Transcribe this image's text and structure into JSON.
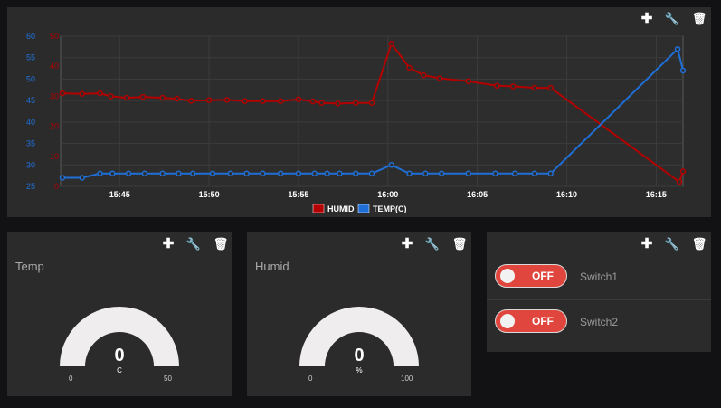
{
  "chart_pane": {
    "tools": {
      "add_icon": "plus-icon",
      "settings_icon": "wrench-icon",
      "delete_icon": "trash-icon"
    }
  },
  "chart_data": {
    "type": "line",
    "x_ticks": [
      "15:45",
      "15:50",
      "15:55",
      "16:00",
      "16:05",
      "16:10",
      "16:15"
    ],
    "x_tick_minutes": [
      45,
      50,
      55,
      60,
      65,
      70,
      75
    ],
    "xlim_minutes": [
      41.7,
      76.5
    ],
    "y_left": {
      "ticks": [
        "60",
        "55",
        "50",
        "45",
        "40",
        "35",
        "30",
        "25"
      ],
      "range": [
        25,
        60
      ],
      "color": "#1f6fd6"
    },
    "y_right": {
      "ticks": [
        "50",
        "40",
        "30",
        "20",
        "10",
        "0"
      ],
      "range": [
        0,
        50
      ],
      "color": "#b40000"
    },
    "grid": true,
    "legend_position": "bottom",
    "series": [
      {
        "name": "HUMID",
        "axis": "right",
        "color": "#b40000",
        "x": [
          41.8,
          42.9,
          43.9,
          44.5,
          45.4,
          46.3,
          47.4,
          48.2,
          49.0,
          50.0,
          51.0,
          52.0,
          53.0,
          54.0,
          55.0,
          55.8,
          56.3,
          57.2,
          58.2,
          59.1,
          60.2,
          61.2,
          62.0,
          62.9,
          64.5,
          66.1,
          67.0,
          68.2,
          69.1,
          76.3,
          76.5
        ],
        "y": [
          31.0,
          30.8,
          31.0,
          30.0,
          29.5,
          29.8,
          29.5,
          29.2,
          28.5,
          28.7,
          28.8,
          28.4,
          28.4,
          28.4,
          29.0,
          28.3,
          27.8,
          27.6,
          27.8,
          27.8,
          47.5,
          39.5,
          37.0,
          36.0,
          35.0,
          33.5,
          33.3,
          32.8,
          32.8,
          1.5,
          5.0
        ],
        "markers": [
          41.8,
          42.9,
          43.9,
          44.5,
          45.4,
          46.3,
          47.4,
          48.2,
          49.0,
          50.0,
          51.0,
          52.0,
          53.0,
          54.0,
          55.0,
          55.8,
          56.3,
          57.2,
          58.2,
          59.1,
          60.2,
          61.2,
          62.0,
          62.9,
          64.5,
          66.1,
          67.0,
          68.2,
          69.1,
          76.3,
          76.5
        ]
      },
      {
        "name": "TEMP(C)",
        "axis": "left",
        "color": "#1f6fd6",
        "x": [
          41.8,
          42.9,
          43.9,
          44.6,
          45.5,
          46.4,
          47.4,
          48.3,
          49.1,
          50.2,
          51.2,
          52.1,
          53.0,
          54.0,
          55.0,
          55.9,
          56.6,
          57.3,
          58.2,
          59.1,
          60.2,
          61.2,
          62.1,
          63.0,
          64.5,
          66.0,
          67.1,
          68.2,
          69.1,
          76.2,
          76.5
        ],
        "y": [
          27,
          27,
          28,
          28,
          28,
          28,
          28,
          28,
          28,
          28,
          28,
          28,
          28,
          28,
          28,
          28,
          28,
          28,
          28,
          28,
          30,
          28,
          28,
          28,
          28,
          28,
          28,
          28,
          28,
          57,
          52
        ],
        "markers": [
          41.8,
          42.9,
          43.9,
          44.6,
          45.5,
          46.4,
          47.4,
          48.3,
          49.1,
          50.2,
          51.2,
          52.1,
          53.0,
          54.0,
          55.0,
          55.9,
          56.6,
          57.3,
          58.2,
          59.1,
          60.2,
          61.2,
          62.1,
          63.0,
          64.5,
          66.0,
          67.1,
          68.2,
          69.1,
          76.2,
          76.5
        ]
      }
    ]
  },
  "temp_pane": {
    "title": "Temp",
    "value": "0",
    "unit": "C",
    "min": "0",
    "max": "50"
  },
  "humid_pane": {
    "title": "Humid",
    "value": "0",
    "unit": "%",
    "min": "0",
    "max": "100"
  },
  "switch_pane": {
    "switches": [
      {
        "state": "OFF",
        "label": "Switch1"
      },
      {
        "state": "OFF",
        "label": "Switch2"
      }
    ],
    "toggle_color": "#e0463d"
  }
}
